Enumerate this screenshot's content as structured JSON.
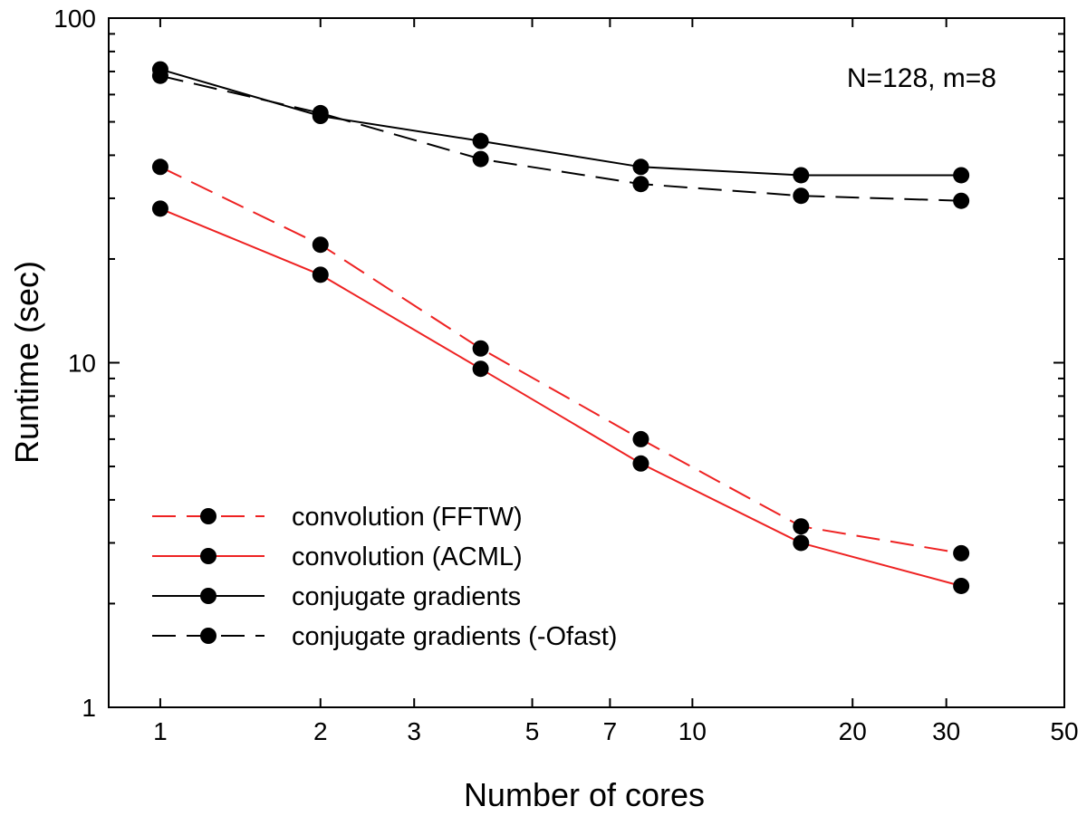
{
  "chart_data": {
    "type": "line",
    "title": "",
    "xlabel": "Number of cores",
    "ylabel": "Runtime (sec)",
    "xscale": "log",
    "yscale": "log",
    "xlim": [
      0.8,
      50
    ],
    "ylim": [
      1,
      100
    ],
    "xticks": [
      1,
      2,
      3,
      5,
      7,
      10,
      20,
      30,
      50
    ],
    "xtick_labels": [
      "1",
      "2",
      "3",
      "5",
      "7",
      "10",
      "20",
      "30",
      "50"
    ],
    "yticks": [
      1,
      10,
      100
    ],
    "ytick_labels": [
      "1",
      "10",
      "100"
    ],
    "grid": false,
    "annotation": "N=128, m=8",
    "legend_position": "bottom-left",
    "x": [
      1,
      2,
      4,
      8,
      16,
      32
    ],
    "series": [
      {
        "name": "convolution (FFTW)",
        "color": "#ee2222",
        "dash": "dashed",
        "values": [
          37,
          22,
          11,
          6,
          3.35,
          2.8
        ]
      },
      {
        "name": "convolution (ACML)",
        "color": "#ee2222",
        "dash": "solid",
        "values": [
          28,
          18,
          9.6,
          5.1,
          3.0,
          2.25
        ]
      },
      {
        "name": "conjugate gradients",
        "color": "#000000",
        "dash": "solid",
        "values": [
          71,
          52,
          44,
          37,
          35,
          35
        ]
      },
      {
        "name": "conjugate gradients (-Ofast)",
        "color": "#000000",
        "dash": "dashed",
        "values": [
          68,
          53,
          39,
          33,
          30.5,
          29.5
        ]
      }
    ]
  }
}
